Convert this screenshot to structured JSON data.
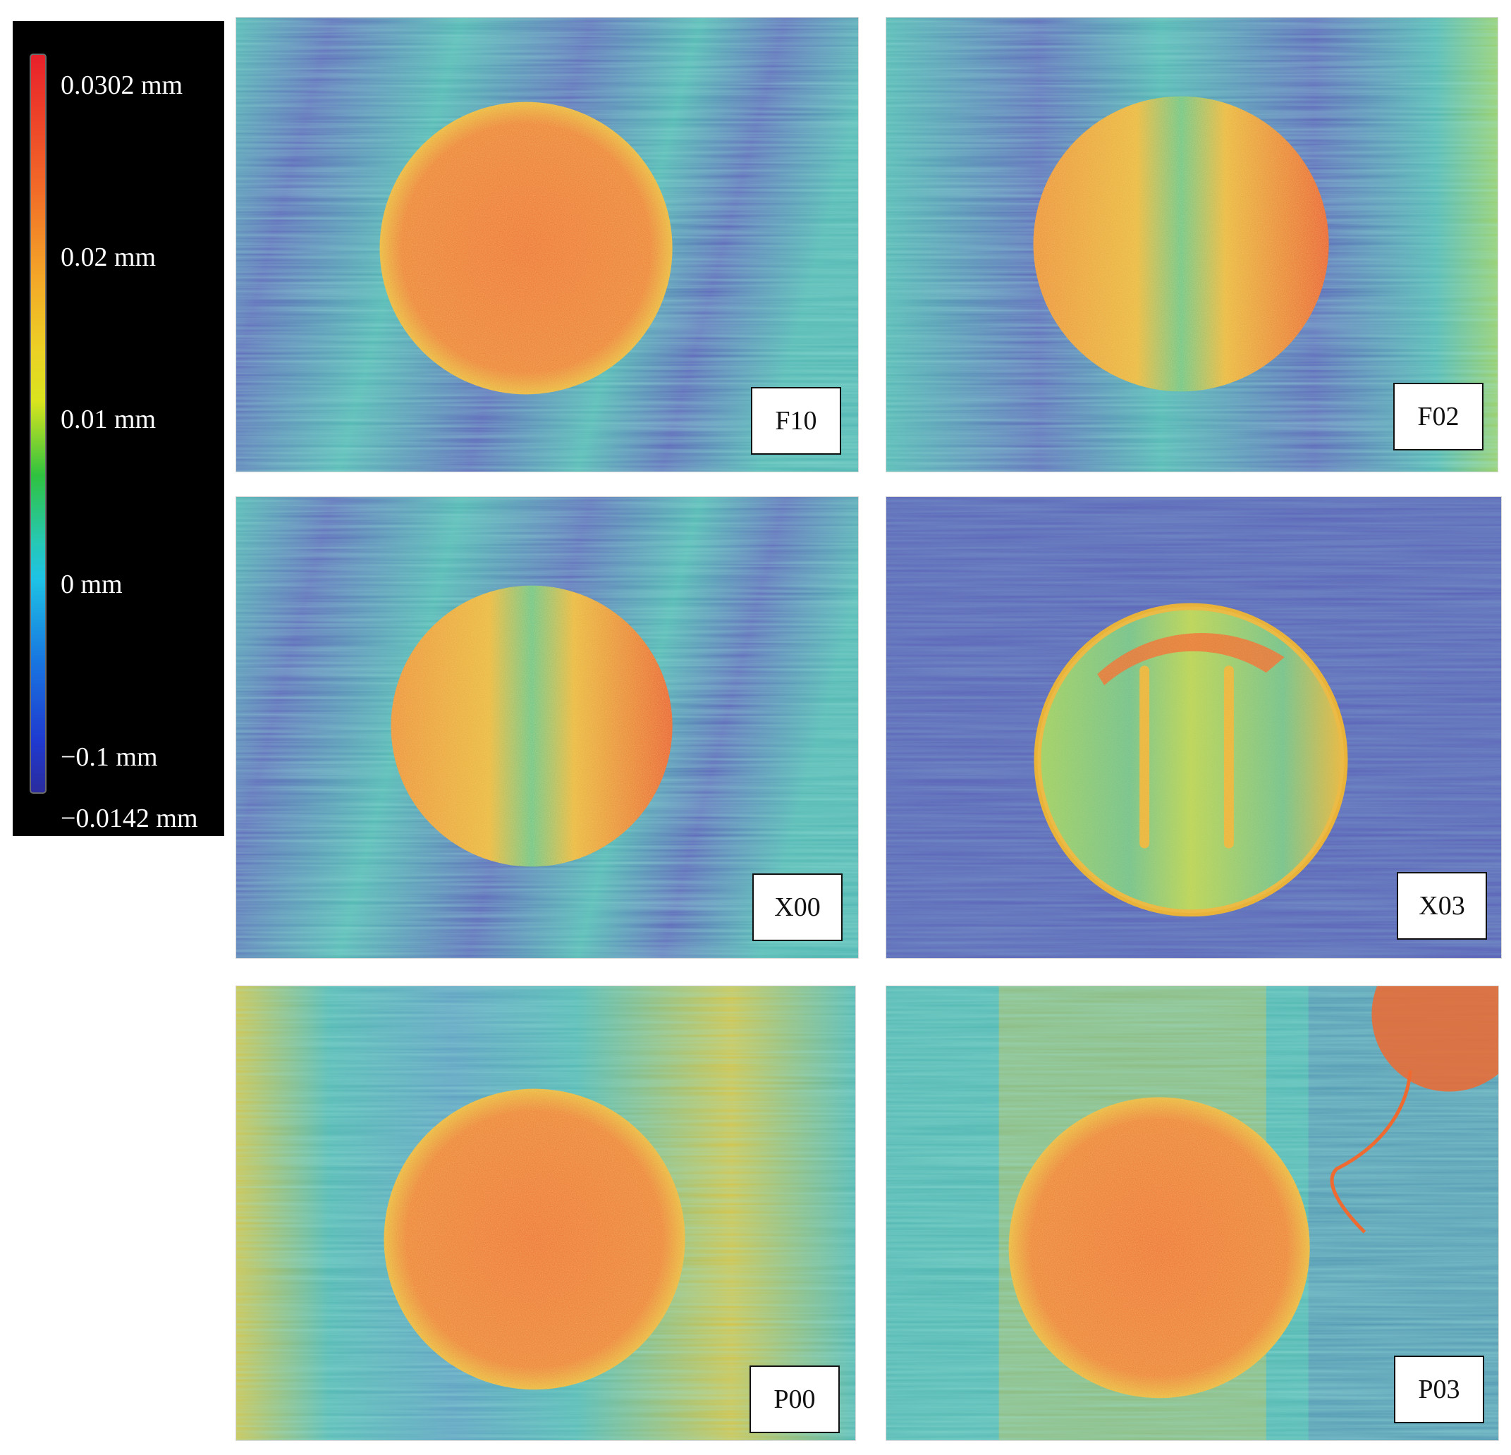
{
  "colorbar": {
    "labels": [
      "0.0302 mm",
      "0.02 mm",
      "0.01 mm",
      "0 mm",
      "−0.1 mm",
      "−0.0142 mm"
    ],
    "colors": [
      "#e8202a",
      "#f3a628",
      "#2fc23f",
      "#1ec3e5",
      "#1f3ad0",
      "#2a2b9e"
    ]
  },
  "panels": [
    {
      "label": "F10"
    },
    {
      "label": "F02"
    },
    {
      "label": "X00"
    },
    {
      "label": "X03"
    },
    {
      "label": "P00"
    },
    {
      "label": "P03"
    }
  ],
  "colors": {
    "background_low": "#5b62b8",
    "background_mid": "#4fb5b0",
    "background_high": "#d9c23f",
    "spot_high": "#ee6a30",
    "spot_mid": "#e9b33a"
  }
}
